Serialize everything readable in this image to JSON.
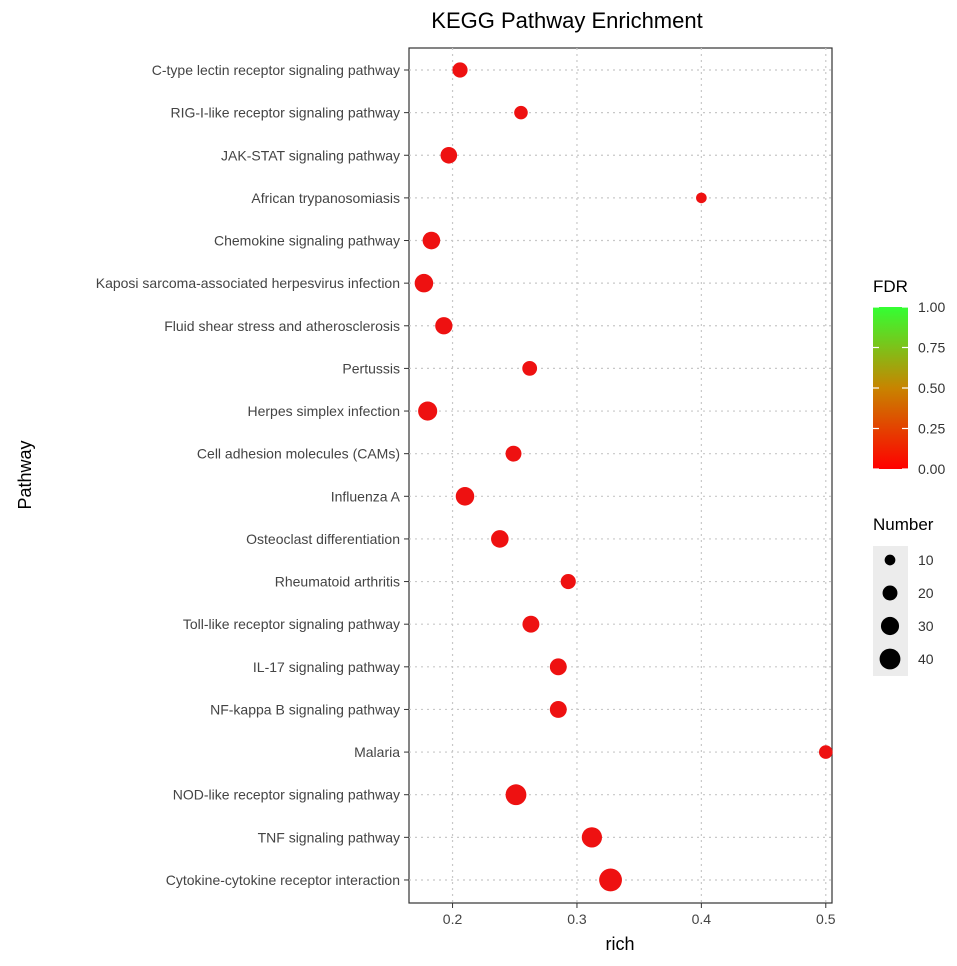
{
  "chart_data": {
    "type": "scatter",
    "title": "KEGG Pathway Enrichment",
    "xlabel": "rich",
    "ylabel": "Pathway",
    "xlim": [
      0.165,
      0.505
    ],
    "xticks": [
      0.2,
      0.3,
      0.4,
      0.5
    ],
    "xtick_labels": [
      "0.2",
      "0.3",
      "0.4",
      "0.5"
    ],
    "grid": true,
    "points": [
      {
        "pathway": "C-type lectin receptor signaling pathway",
        "rich": 0.206,
        "number": 18,
        "fdr": 0.0
      },
      {
        "pathway": "RIG-I-like receptor signaling pathway",
        "rich": 0.255,
        "number": 14,
        "fdr": 0.0
      },
      {
        "pathway": "JAK-STAT signaling pathway",
        "rich": 0.197,
        "number": 22,
        "fdr": 0.0
      },
      {
        "pathway": "African trypanosomiasis",
        "rich": 0.4,
        "number": 8,
        "fdr": 0.0
      },
      {
        "pathway": "Chemokine signaling pathway",
        "rich": 0.183,
        "number": 25,
        "fdr": 0.0
      },
      {
        "pathway": "Kaposi sarcoma-associated herpesvirus infection",
        "rich": 0.177,
        "number": 28,
        "fdr": 0.0
      },
      {
        "pathway": "Fluid shear stress and atherosclerosis",
        "rich": 0.193,
        "number": 24,
        "fdr": 0.0
      },
      {
        "pathway": "Pertussis",
        "rich": 0.262,
        "number": 17,
        "fdr": 0.0
      },
      {
        "pathway": "Herpes simplex infection",
        "rich": 0.18,
        "number": 30,
        "fdr": 0.0
      },
      {
        "pathway": "Cell adhesion molecules (CAMs)",
        "rich": 0.249,
        "number": 20,
        "fdr": 0.0
      },
      {
        "pathway": "Influenza A",
        "rich": 0.21,
        "number": 28,
        "fdr": 0.0
      },
      {
        "pathway": "Osteoclast differentiation",
        "rich": 0.238,
        "number": 25,
        "fdr": 0.0
      },
      {
        "pathway": "Rheumatoid arthritis",
        "rich": 0.293,
        "number": 18,
        "fdr": 0.0
      },
      {
        "pathway": "Toll-like receptor signaling pathway",
        "rich": 0.263,
        "number": 23,
        "fdr": 0.0
      },
      {
        "pathway": "IL-17 signaling pathway",
        "rich": 0.285,
        "number": 23,
        "fdr": 0.0
      },
      {
        "pathway": "NF-kappa B signaling pathway",
        "rich": 0.285,
        "number": 23,
        "fdr": 0.0
      },
      {
        "pathway": "Malaria",
        "rich": 0.5,
        "number": 14,
        "fdr": 0.0
      },
      {
        "pathway": "NOD-like receptor signaling pathway",
        "rich": 0.251,
        "number": 36,
        "fdr": 0.0
      },
      {
        "pathway": "TNF signaling pathway",
        "rich": 0.312,
        "number": 34,
        "fdr": 0.0
      },
      {
        "pathway": "Cytokine-cytokine receptor interaction",
        "rich": 0.327,
        "number": 44,
        "fdr": 0.0
      }
    ],
    "color_legend": {
      "title": "FDR",
      "ticks": [
        "1.00",
        "0.75",
        "0.50",
        "0.25",
        "0.00"
      ],
      "tick_values": [
        1.0,
        0.75,
        0.5,
        0.25,
        0.0
      ],
      "low_color": "#ff0000",
      "mid_color": "#cc6600",
      "high_color": "#33ff33"
    },
    "size_legend": {
      "title": "Number",
      "values": [
        10,
        20,
        30,
        40
      ],
      "labels": [
        "10",
        "20",
        "30",
        "40"
      ]
    },
    "point_color": "#ee1111",
    "panel_background": "#ffffff",
    "grid_color": "#c8c8c8"
  }
}
